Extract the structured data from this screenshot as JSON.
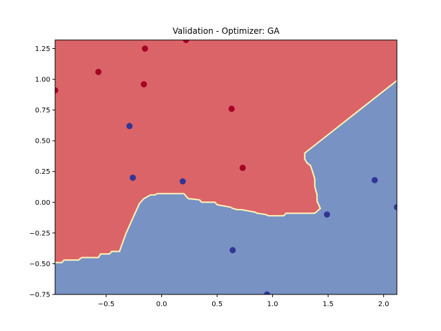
{
  "chart_data": {
    "type": "scatter",
    "title": "Validation - Optimizer: GA",
    "xlabel": "",
    "ylabel": "",
    "xlim": [
      -0.96,
      2.12
    ],
    "ylim": [
      -0.75,
      1.32
    ],
    "x_ticks": [
      "−0.5",
      "0.0",
      "0.5",
      "1.0",
      "1.5",
      "2.0"
    ],
    "x_tick_values": [
      -0.5,
      0.0,
      0.5,
      1.0,
      1.5,
      2.0
    ],
    "y_ticks": [
      "−0.75",
      "−0.50",
      "−0.25",
      "0.00",
      "0.25",
      "0.50",
      "0.75",
      "1.00",
      "1.25"
    ],
    "y_tick_values": [
      -0.75,
      -0.5,
      -0.25,
      0.0,
      0.25,
      0.5,
      0.75,
      1.0,
      1.25
    ],
    "grid": false,
    "colors": {
      "class_red_region": "#db6468",
      "class_blue_region": "#7892c4",
      "boundary": "#fdf6b8",
      "class_red_point": "#a50026",
      "class_blue_point": "#313695"
    },
    "decision_boundary": {
      "x": [
        -0.96,
        -0.9,
        -0.88,
        -0.75,
        -0.72,
        -0.57,
        -0.55,
        -0.47,
        -0.45,
        -0.38,
        -0.36,
        -0.34,
        -0.32,
        -0.3,
        -0.28,
        -0.26,
        -0.24,
        -0.22,
        -0.2,
        -0.18,
        -0.16,
        -0.14,
        -0.1,
        -0.06,
        -0.04,
        0.2,
        0.22,
        0.24,
        0.34,
        0.36,
        0.48,
        0.5,
        0.62,
        0.64,
        0.68,
        0.72,
        0.84,
        0.86,
        0.94,
        0.96,
        1.1,
        1.12,
        1.38,
        1.43,
        1.42,
        1.4,
        1.4,
        1.38,
        1.38,
        1.36,
        1.34,
        1.31,
        1.29,
        1.29,
        2.12
      ],
      "y": [
        -0.49,
        -0.49,
        -0.47,
        -0.47,
        -0.45,
        -0.45,
        -0.42,
        -0.42,
        -0.4,
        -0.4,
        -0.35,
        -0.3,
        -0.25,
        -0.21,
        -0.17,
        -0.13,
        -0.09,
        -0.05,
        -0.01,
        0.01,
        0.03,
        0.04,
        0.06,
        0.06,
        0.07,
        0.07,
        0.05,
        0.03,
        0.02,
        0.0,
        0.0,
        -0.02,
        -0.04,
        -0.05,
        -0.06,
        -0.06,
        -0.08,
        -0.09,
        -0.1,
        -0.11,
        -0.11,
        -0.09,
        -0.09,
        -0.05,
        -0.03,
        0.01,
        0.06,
        0.13,
        0.19,
        0.25,
        0.3,
        0.32,
        0.35,
        0.4,
        0.99
      ]
    },
    "series": [
      {
        "class": "red",
        "x": [
          -0.96,
          -0.57,
          -0.15,
          -0.16,
          0.22,
          0.63,
          0.73
        ],
        "y": [
          0.91,
          1.06,
          1.25,
          0.96,
          1.32,
          0.76,
          0.28
        ]
      },
      {
        "class": "blue",
        "x": [
          -0.29,
          -0.26,
          0.19,
          0.64,
          0.95,
          1.49,
          1.92,
          2.12
        ],
        "y": [
          0.62,
          0.2,
          0.17,
          -0.39,
          -0.75,
          -0.1,
          0.18,
          -0.04
        ]
      }
    ]
  }
}
